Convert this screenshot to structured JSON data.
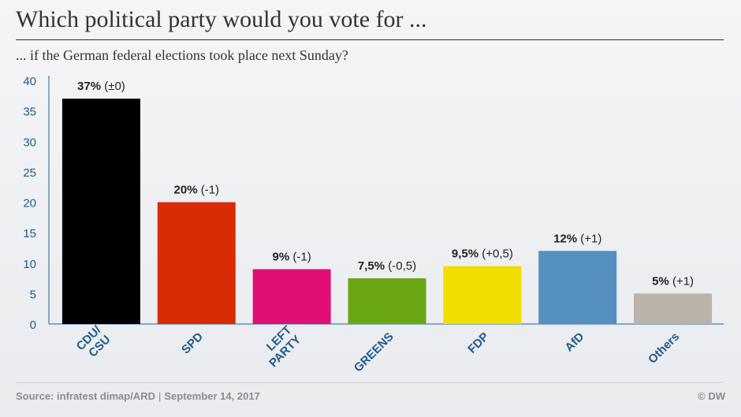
{
  "header": {
    "title": "Which political party would you vote for ...",
    "subtitle": "... if the German federal elections took place next Sunday?"
  },
  "footer": {
    "source": "Source: infratest dimap/ARD",
    "separator": "|",
    "date": "September 14, 2017",
    "copyright": "© DW"
  },
  "chart_data": {
    "type": "bar",
    "title": "Which political party would you vote for ...",
    "subtitle": "... if the German federal elections took place next Sunday?",
    "xlabel": "",
    "ylabel": "",
    "ylim": [
      0,
      40
    ],
    "yticks": [
      0,
      5,
      10,
      15,
      20,
      25,
      30,
      35,
      40
    ],
    "grid": false,
    "categories": [
      {
        "label_lines": [
          "CDU/",
          "CSU"
        ],
        "value": 37,
        "value_label": "37%",
        "change_label": "(±0)",
        "color": "#000000"
      },
      {
        "label_lines": [
          "SPD"
        ],
        "value": 20,
        "value_label": "20%",
        "change_label": "(-1)",
        "color": "#d92b05"
      },
      {
        "label_lines": [
          "LEFT",
          "PARTY"
        ],
        "value": 9,
        "value_label": "9%",
        "change_label": "(-1)",
        "color": "#e00f74"
      },
      {
        "label_lines": [
          "GREENS"
        ],
        "value": 7.5,
        "value_label": "7,5%",
        "change_label": "(-0,5)",
        "color": "#6aa612"
      },
      {
        "label_lines": [
          "FDP"
        ],
        "value": 9.5,
        "value_label": "9,5%",
        "change_label": "(+0,5)",
        "color": "#f2dd00"
      },
      {
        "label_lines": [
          "AfD"
        ],
        "value": 12,
        "value_label": "12%",
        "change_label": "(+1)",
        "color": "#5590c0"
      },
      {
        "label_lines": [
          "Others"
        ],
        "value": 5,
        "value_label": "5%",
        "change_label": "(+1)",
        "color": "#b9b3a9"
      }
    ],
    "axis_color": "#5f93bd",
    "label_color": "#1f5a8c"
  }
}
